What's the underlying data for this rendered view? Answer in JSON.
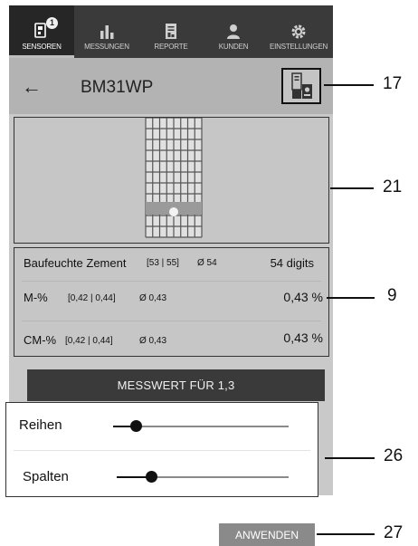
{
  "nav": {
    "tabs": [
      {
        "label": "SENSOREN",
        "icon": "sensor-icon",
        "badge": "1",
        "active": true
      },
      {
        "label": "MESSUNGEN",
        "icon": "bar-chart-icon"
      },
      {
        "label": "REPORTE",
        "icon": "report-icon"
      },
      {
        "label": "KUNDEN",
        "icon": "customer-icon"
      },
      {
        "label": "EINSTELLUNGEN",
        "icon": "gear-icon"
      }
    ]
  },
  "header": {
    "back_icon": "arrow-left-icon",
    "title": "BM31WP",
    "report_icon": "report-export-icon"
  },
  "image_panel": {
    "image": "material-grid-image"
  },
  "readings": {
    "primary": {
      "name": "Baufeuchte Zement",
      "range": "[53 | 55]",
      "avg": "Ø 54",
      "value": "54 digits"
    },
    "m_percent": {
      "name": "M-%",
      "range": "[0,42 | 0,44]",
      "avg": "Ø 0,43",
      "value": "0,43 %"
    },
    "cm_percent": {
      "name": "CM-%",
      "range": "[0,42 | 0,44]",
      "avg": "Ø 0,43",
      "value": "0,43 %"
    }
  },
  "measure_button": {
    "label": "MESSWERT FÜR 1,3"
  },
  "sliders": {
    "rows": {
      "label": "Reihen",
      "value_fraction": 0.13
    },
    "columns": {
      "label": "Spalten",
      "value_fraction": 0.2
    }
  },
  "apply_button": {
    "label": "ANWENDEN"
  },
  "callouts": {
    "c17": "17",
    "c21": "21",
    "c9": "9",
    "c26": "26",
    "c27": "27"
  },
  "colors": {
    "nav_bg": "#3a3a3a",
    "header_bg": "#b3b3b3",
    "screen_bg": "#c9c9c9",
    "button_dark": "#3a3a3a",
    "apply_bg": "#8a8a8a"
  }
}
